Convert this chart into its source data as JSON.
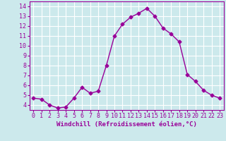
{
  "x": [
    0,
    1,
    2,
    3,
    4,
    5,
    6,
    7,
    8,
    9,
    10,
    11,
    12,
    13,
    14,
    15,
    16,
    17,
    18,
    19,
    20,
    21,
    22,
    23
  ],
  "y": [
    4.7,
    4.6,
    4.0,
    3.7,
    3.8,
    4.7,
    5.8,
    5.2,
    5.4,
    8.0,
    11.0,
    12.2,
    12.9,
    13.3,
    13.8,
    13.0,
    11.8,
    11.2,
    10.4,
    7.1,
    6.4,
    5.5,
    5.0,
    4.7
  ],
  "line_color": "#990099",
  "marker": "D",
  "markersize": 2.5,
  "linewidth": 1.0,
  "bg_color": "#cce9ec",
  "grid_color": "#ffffff",
  "xlabel": "Windchill (Refroidissement éolien,°C)",
  "xlabel_color": "#990099",
  "xlabel_fontsize": 6.5,
  "tick_color": "#990099",
  "tick_fontsize": 6.0,
  "ylim": [
    3.5,
    14.5
  ],
  "xlim": [
    -0.5,
    23.5
  ],
  "yticks": [
    4,
    5,
    6,
    7,
    8,
    9,
    10,
    11,
    12,
    13,
    14
  ],
  "xticks": [
    0,
    1,
    2,
    3,
    4,
    5,
    6,
    7,
    8,
    9,
    10,
    11,
    12,
    13,
    14,
    15,
    16,
    17,
    18,
    19,
    20,
    21,
    22,
    23
  ],
  "spine_color": "#990099"
}
